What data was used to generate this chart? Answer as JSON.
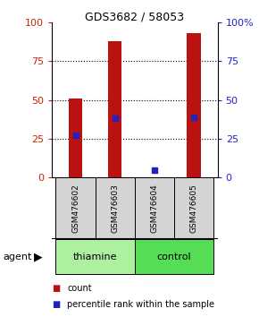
{
  "title": "GDS3682 / 58053",
  "samples": [
    "GSM476602",
    "GSM476603",
    "GSM476604",
    "GSM476605"
  ],
  "counts": [
    51,
    88,
    0,
    93
  ],
  "percentiles": [
    27,
    38,
    5,
    39
  ],
  "groups": [
    {
      "label": "thiamine",
      "samples": [
        0,
        1
      ],
      "color": "#adf0a0"
    },
    {
      "label": "control",
      "samples": [
        2,
        3
      ],
      "color": "#55dd55"
    }
  ],
  "ylim": [
    0,
    100
  ],
  "yticks": [
    0,
    25,
    50,
    75,
    100
  ],
  "bar_color": "#bb1111",
  "dot_color": "#2222bb",
  "left_axis_color": "#cc2200",
  "right_axis_color": "#2222cc",
  "sample_bg_color": "#d4d4d4",
  "bar_width": 0.35,
  "legend_items": [
    {
      "color": "#bb1111",
      "label": "count"
    },
    {
      "color": "#2222bb",
      "label": "percentile rank within the sample"
    }
  ]
}
